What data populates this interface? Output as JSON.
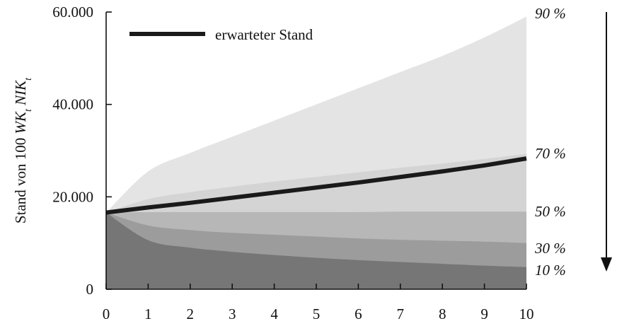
{
  "chart_data": {
    "type": "area",
    "title": "",
    "xlabel": "",
    "ylabel": "Stand von 100 WK_t NIK_t",
    "ylabel_parts": [
      {
        "text": "Stand von 100 ",
        "italic": false
      },
      {
        "text": "WK",
        "italic": true
      },
      {
        "text": "t",
        "italic": true,
        "sub": true
      },
      {
        "text": " ",
        "italic": false
      },
      {
        "text": "NIK",
        "italic": true
      },
      {
        "text": "t",
        "italic": true,
        "sub": true
      }
    ],
    "x": [
      0,
      1,
      2,
      3,
      4,
      5,
      6,
      7,
      8,
      9,
      10
    ],
    "x_tick_labels": [
      "0",
      "1",
      "2",
      "3",
      "4",
      "5",
      "6",
      "7",
      "8",
      "9",
      "10"
    ],
    "ylim": [
      0,
      60000
    ],
    "y_ticks": [
      0,
      20000,
      40000,
      60000
    ],
    "y_tick_labels": [
      "0",
      "20.000",
      "40.000",
      "60.000"
    ],
    "quantile_bands": [
      {
        "quantile": "90 %",
        "color": "#e4e4e4",
        "values": [
          16600,
          25500,
          29500,
          33000,
          36500,
          40000,
          43500,
          47000,
          50500,
          54500,
          59000
        ]
      },
      {
        "quantile": "70 %",
        "color": "#d4d4d4",
        "values": [
          16600,
          19500,
          21000,
          22200,
          23300,
          24300,
          25300,
          26300,
          27200,
          28200,
          29300
        ]
      },
      {
        "quantile": "50 %",
        "color": "#b7b7b7",
        "values": [
          16600,
          16700,
          16700,
          16700,
          16700,
          16700,
          16700,
          16800,
          16800,
          16800,
          16800
        ]
      },
      {
        "quantile": "30 %",
        "color": "#9c9c9c",
        "values": [
          16600,
          13800,
          12800,
          12200,
          11800,
          11400,
          11000,
          10700,
          10500,
          10300,
          10000
        ]
      },
      {
        "quantile": "10 %",
        "color": "#767676",
        "values": [
          16600,
          10600,
          9000,
          8100,
          7400,
          6800,
          6300,
          5900,
          5500,
          5100,
          4800
        ]
      }
    ],
    "series": [
      {
        "name": "erwarteter Stand",
        "values": [
          16600,
          17700,
          18700,
          19800,
          20900,
          22000,
          23100,
          24300,
          25500,
          26800,
          28300
        ]
      }
    ],
    "legend": {
      "label": "erwarteter Stand",
      "position": "top-left"
    },
    "arrow": {
      "direction": "down"
    },
    "grid": false
  }
}
